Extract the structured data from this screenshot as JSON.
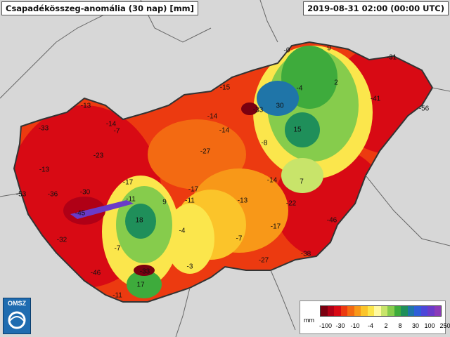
{
  "header": {
    "title": "Csapadékösszeg-anomália (30 nap) [mm]",
    "timestamp": "2019-08-31 02:00 (00:00 UTC)"
  },
  "map_values": [
    "-0",
    "9",
    "-31",
    "-15",
    "-4",
    "2",
    "-41",
    "-56",
    "-13",
    "30",
    "-33",
    "-14",
    "-14",
    "-7",
    "-14",
    "15",
    "-33",
    "-27",
    "-8",
    "-13",
    "-23",
    "-53",
    "-36",
    "-30",
    "-17",
    "-11",
    "9",
    "-17",
    "-11",
    "-13",
    "-14",
    "-45",
    "7",
    "-22",
    "18",
    "-4",
    "-46",
    "-32",
    "-17",
    "-7",
    "-7",
    "-38",
    "-27",
    "-33",
    "-46",
    "-3",
    "17",
    "-11"
  ],
  "legend": {
    "unit": "mm",
    "colors": [
      "#7a0010",
      "#b00016",
      "#d80a14",
      "#ec3a10",
      "#f36a12",
      "#f89818",
      "#fbc42a",
      "#fbe64c",
      "#fff9a0",
      "#c8e46a",
      "#86cc4c",
      "#3eab3c",
      "#1f8f5a",
      "#1f75a8",
      "#2f5ed8",
      "#4c46d8",
      "#6a3ac8",
      "#8a3ab8"
    ],
    "ticks": [
      "-100",
      "-30",
      "-10",
      "-4",
      "2",
      "8",
      "30",
      "100",
      "250"
    ]
  },
  "logo": {
    "text": "OMSZ"
  },
  "colors": {
    "background": "#dcdcdc",
    "border": "#333333"
  }
}
